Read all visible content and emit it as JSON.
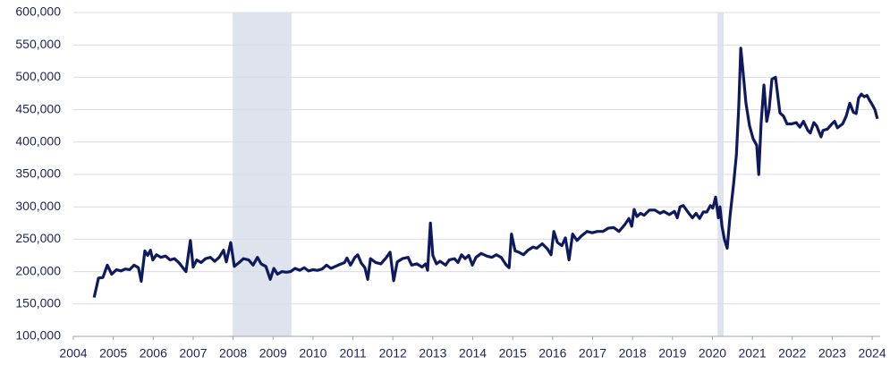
{
  "chart_data": {
    "type": "line",
    "x": [
      2004.52,
      2004.63,
      2004.74,
      2004.85,
      2004.96,
      2005.08,
      2005.19,
      2005.3,
      2005.41,
      2005.52,
      2005.63,
      2005.7,
      2005.79,
      2005.86,
      2005.93,
      2005.99,
      2006.08,
      2006.19,
      2006.31,
      2006.42,
      2006.53,
      2006.64,
      2006.82,
      2006.93,
      2007.0,
      2007.09,
      2007.2,
      2007.31,
      2007.43,
      2007.54,
      2007.65,
      2007.76,
      2007.83,
      2007.94,
      2008.03,
      2008.17,
      2008.26,
      2008.39,
      2008.5,
      2008.61,
      2008.7,
      2008.82,
      2008.93,
      2009.02,
      2009.11,
      2009.22,
      2009.33,
      2009.44,
      2009.55,
      2009.67,
      2009.78,
      2009.89,
      2010.0,
      2010.11,
      2010.23,
      2010.34,
      2010.45,
      2010.56,
      2010.67,
      2010.79,
      2010.85,
      2010.94,
      2011.05,
      2011.12,
      2011.21,
      2011.3,
      2011.37,
      2011.44,
      2011.57,
      2011.7,
      2011.84,
      2011.93,
      2012.02,
      2012.11,
      2012.24,
      2012.38,
      2012.47,
      2012.6,
      2012.73,
      2012.82,
      2012.87,
      2012.94,
      2013.0,
      2013.09,
      2013.18,
      2013.32,
      2013.41,
      2013.54,
      2013.63,
      2013.72,
      2013.81,
      2013.9,
      2013.99,
      2014.08,
      2014.21,
      2014.35,
      2014.48,
      2014.59,
      2014.71,
      2014.84,
      2014.91,
      2014.97,
      2015.06,
      2015.15,
      2015.27,
      2015.38,
      2015.51,
      2015.6,
      2015.74,
      2015.87,
      2015.96,
      2016.03,
      2016.12,
      2016.23,
      2016.32,
      2016.41,
      2016.5,
      2016.61,
      2016.72,
      2016.86,
      2016.99,
      2017.12,
      2017.26,
      2017.39,
      2017.53,
      2017.66,
      2017.8,
      2017.91,
      2017.98,
      2018.04,
      2018.11,
      2018.2,
      2018.29,
      2018.42,
      2018.56,
      2018.69,
      2018.78,
      2018.92,
      2019.05,
      2019.12,
      2019.19,
      2019.27,
      2019.41,
      2019.5,
      2019.59,
      2019.68,
      2019.77,
      2019.86,
      2019.95,
      2020.01,
      2020.08,
      2020.15,
      2020.19,
      2020.24,
      2020.3,
      2020.37,
      2020.44,
      2020.53,
      2020.6,
      2020.66,
      2020.71,
      2020.78,
      2020.84,
      2020.93,
      2021.02,
      2021.11,
      2021.16,
      2021.22,
      2021.29,
      2021.36,
      2021.42,
      2021.49,
      2021.58,
      2021.63,
      2021.69,
      2021.78,
      2021.87,
      2021.98,
      2022.1,
      2022.19,
      2022.28,
      2022.39,
      2022.45,
      2022.54,
      2022.61,
      2022.72,
      2022.77,
      2022.88,
      2022.99,
      2023.06,
      2023.13,
      2023.26,
      2023.35,
      2023.44,
      2023.53,
      2023.6,
      2023.66,
      2023.73,
      2023.8,
      2023.87,
      2023.93,
      2024.0,
      2024.07,
      2024.13
    ],
    "series": [
      {
        "color": "#0f1a5e",
        "values": [
          160000,
          190000,
          191000,
          210000,
          196000,
          203000,
          201000,
          204000,
          203000,
          210000,
          206000,
          185000,
          232000,
          225000,
          233000,
          218000,
          226000,
          222000,
          224000,
          218000,
          220000,
          214000,
          200000,
          248000,
          207000,
          218000,
          214000,
          220000,
          222000,
          216000,
          222000,
          233000,
          215000,
          245000,
          208000,
          215000,
          220000,
          218000,
          210000,
          222000,
          212000,
          208000,
          188000,
          205000,
          196000,
          200000,
          199000,
          200000,
          205000,
          202000,
          206000,
          201000,
          203000,
          202000,
          204000,
          210000,
          205000,
          208000,
          211000,
          214000,
          221000,
          210000,
          222000,
          226000,
          213000,
          206000,
          188000,
          220000,
          214000,
          212000,
          222000,
          230000,
          186000,
          215000,
          220000,
          222000,
          210000,
          212000,
          207000,
          212000,
          202000,
          275000,
          225000,
          212000,
          216000,
          210000,
          218000,
          220000,
          214000,
          226000,
          220000,
          225000,
          210000,
          222000,
          228000,
          224000,
          222000,
          226000,
          222000,
          210000,
          206000,
          258000,
          232000,
          230000,
          226000,
          233000,
          238000,
          236000,
          243000,
          235000,
          226000,
          262000,
          245000,
          240000,
          252000,
          218000,
          258000,
          248000,
          255000,
          262000,
          260000,
          262000,
          262000,
          267000,
          268000,
          262000,
          272000,
          282000,
          270000,
          296000,
          285000,
          290000,
          287000,
          295000,
          295000,
          290000,
          293000,
          288000,
          293000,
          283000,
          300000,
          302000,
          290000,
          283000,
          290000,
          282000,
          292000,
          292000,
          302000,
          298000,
          315000,
          283000,
          300000,
          270000,
          250000,
          236000,
          285000,
          335000,
          380000,
          455000,
          545000,
          500000,
          460000,
          425000,
          405000,
          395000,
          350000,
          430000,
          488000,
          432000,
          450000,
          497000,
          500000,
          475000,
          445000,
          440000,
          428000,
          428000,
          430000,
          423000,
          432000,
          418000,
          414000,
          430000,
          425000,
          408000,
          418000,
          420000,
          428000,
          432000,
          422000,
          428000,
          440000,
          460000,
          446000,
          444000,
          468000,
          474000,
          470000,
          472000,
          465000,
          458000,
          450000,
          436000
        ]
      }
    ],
    "shaded_ranges": [
      [
        2007.99,
        2009.46
      ],
      [
        2020.13,
        2020.28
      ]
    ],
    "shade_color": "#dfe3ee",
    "xlim": [
      2004,
      2024.2
    ],
    "xticks": [
      2004,
      2005,
      2006,
      2007,
      2008,
      2009,
      2010,
      2011,
      2012,
      2013,
      2014,
      2015,
      2016,
      2017,
      2018,
      2019,
      2020,
      2021,
      2022,
      2023,
      2024
    ],
    "ylim": [
      100000,
      600000
    ],
    "yticks": [
      {
        "value": 100000,
        "label": "100,000"
      },
      {
        "value": 150000,
        "label": "150,000"
      },
      {
        "value": 200000,
        "label": "200,000"
      },
      {
        "value": 250000,
        "label": "250,000"
      },
      {
        "value": 300000,
        "label": "300,000"
      },
      {
        "value": 350000,
        "label": "350,000"
      },
      {
        "value": 400000,
        "label": "400,000"
      },
      {
        "value": 450000,
        "label": "450,000"
      },
      {
        "value": 500000,
        "label": "500,000"
      },
      {
        "value": 550000,
        "label": "550,000"
      },
      {
        "value": 600000,
        "label": "600,000"
      }
    ],
    "grid": true
  }
}
